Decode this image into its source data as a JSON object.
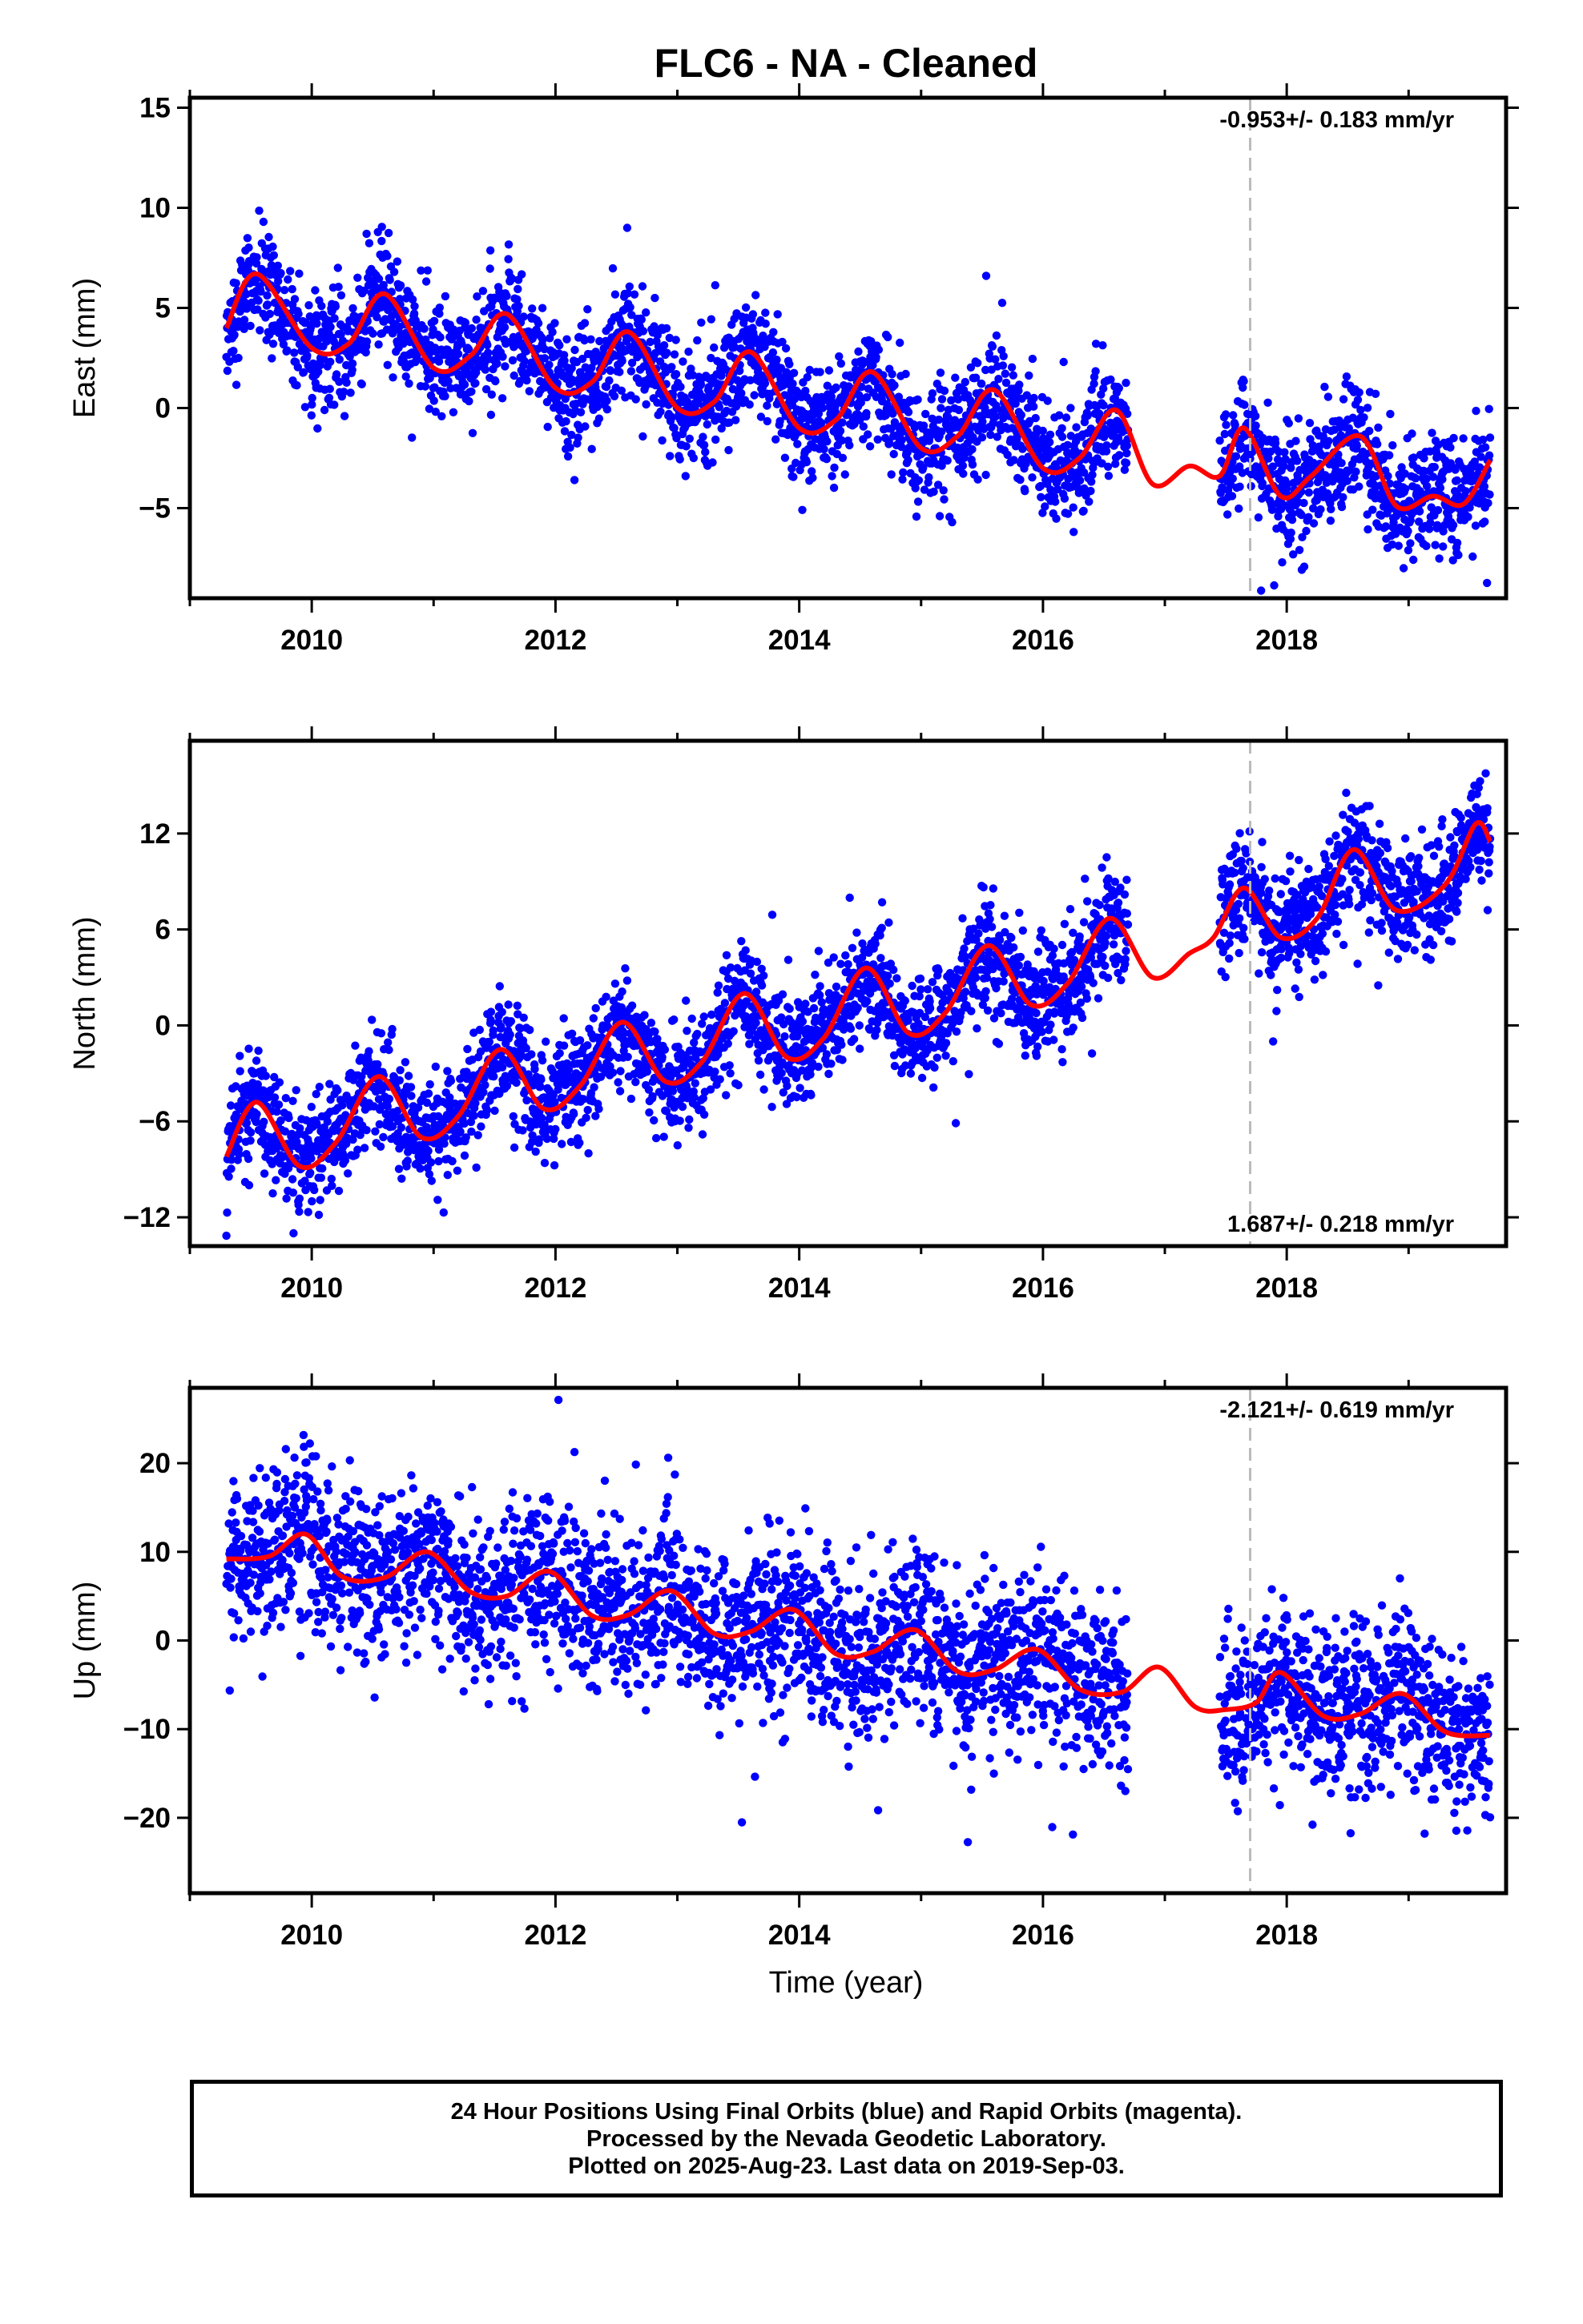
{
  "chart_data": {
    "title": "FLC6  - NA - Cleaned",
    "xlabel": "Time (year)",
    "xlim": [
      2009.0,
      2019.8
    ],
    "x_ticks": [
      2010,
      2012,
      2014,
      2016,
      2018
    ],
    "x_tick_labels": [
      "2010",
      "2012",
      "2014",
      "2016",
      "2018"
    ],
    "vertical_dashed_line_x": 2017.7,
    "colors": {
      "final_orbits": "#0000ff",
      "model": "#ff0000",
      "reference_line": "#bbbbbb"
    },
    "panels": [
      {
        "type": "scatter",
        "ylabel": "East (mm)",
        "ylim": [
          -9.5,
          15.5
        ],
        "y_ticks": [
          -5,
          0,
          5,
          10,
          15
        ],
        "y_tick_labels": [
          "−5",
          "0",
          "5",
          "10",
          "15"
        ],
        "rate_text": "-0.953+/- 0.183 mm/yr",
        "rate_position": "top-right",
        "series": [
          {
            "name": "Final Orbits (blue)",
            "kind": "daily positions",
            "x_range": [
              2009.3,
              2019.67
            ],
            "gap": [
              2016.7,
              2017.45
            ],
            "trend_mm_per_yr": -0.953,
            "value_at_start": 4.5,
            "annual_amplitude": 2.2,
            "scatter_sd": 1.4
          },
          {
            "kind": "model",
            "x": [
              2009.3,
              2009.55,
              2010.0,
              2010.3,
              2010.6,
              2011.0,
              2011.3,
              2011.6,
              2012.0,
              2012.3,
              2012.6,
              2013.0,
              2013.3,
              2013.6,
              2014.0,
              2014.3,
              2014.6,
              2015.0,
              2015.3,
              2015.6,
              2016.0,
              2016.3,
              2016.6,
              2016.9,
              2017.2,
              2017.45,
              2017.65,
              2017.95,
              2018.2,
              2018.6,
              2018.9,
              2019.2,
              2019.45,
              2019.67
            ],
            "y": [
              4.0,
              6.7,
              3.0,
              3.2,
              5.7,
              2.0,
              2.6,
              4.7,
              1.0,
              1.3,
              3.8,
              0.0,
              0.3,
              2.8,
              -1.0,
              -0.6,
              1.8,
              -2.0,
              -1.4,
              0.9,
              -3.0,
              -2.5,
              -0.1,
              -3.8,
              -2.9,
              -3.4,
              -1.0,
              -4.4,
              -3.4,
              -1.4,
              -4.9,
              -4.4,
              -4.8,
              -2.6
            ]
          }
        ]
      },
      {
        "type": "scatter",
        "ylabel": "North (mm)",
        "ylim": [
          -13.8,
          17.8
        ],
        "y_ticks": [
          -12,
          -6,
          0,
          6,
          12
        ],
        "y_tick_labels": [
          "−12",
          "−6",
          "0",
          "6",
          "12"
        ],
        "rate_text": "1.687+/- 0.218 mm/yr",
        "rate_position": "bottom-right",
        "series": [
          {
            "name": "Final Orbits (blue)",
            "kind": "daily positions",
            "x_range": [
              2009.3,
              2019.67
            ],
            "gap": [
              2016.7,
              2017.45
            ],
            "trend_mm_per_yr": 1.687,
            "value_at_start": -8.0,
            "annual_amplitude": 2.3,
            "scatter_sd": 1.7
          },
          {
            "kind": "model",
            "x": [
              2009.3,
              2009.55,
              2009.9,
              2010.2,
              2010.55,
              2010.9,
              2011.2,
              2011.55,
              2011.9,
              2012.2,
              2012.55,
              2012.9,
              2013.2,
              2013.55,
              2013.9,
              2014.2,
              2014.55,
              2014.9,
              2015.2,
              2015.55,
              2015.9,
              2016.2,
              2016.55,
              2016.9,
              2017.2,
              2017.4,
              2017.65,
              2017.95,
              2018.25,
              2018.55,
              2018.9,
              2019.3,
              2019.55,
              2019.67
            ],
            "y": [
              -8.2,
              -4.8,
              -8.8,
              -7.3,
              -3.2,
              -7.0,
              -5.7,
              -1.5,
              -5.2,
              -3.8,
              0.2,
              -3.5,
              -2.3,
              2.0,
              -2.0,
              -0.8,
              3.6,
              -0.5,
              0.8,
              5.0,
              1.3,
              2.6,
              6.7,
              3.0,
              4.5,
              5.5,
              8.6,
              5.5,
              6.7,
              11.0,
              7.2,
              8.8,
              12.6,
              11.5
            ]
          }
        ]
      },
      {
        "type": "scatter",
        "ylabel": "Up (mm)",
        "ylim": [
          -28.5,
          28.5
        ],
        "y_ticks": [
          -20,
          -10,
          0,
          10,
          20
        ],
        "y_tick_labels": [
          "−20",
          "−10",
          "0",
          "10",
          "20"
        ],
        "rate_text": "-2.121+/- 0.619 mm/yr",
        "rate_position": "top-right",
        "series": [
          {
            "name": "Final Orbits (blue)",
            "kind": "daily positions",
            "x_range": [
              2009.3,
              2019.67
            ],
            "gap": [
              2016.7,
              2017.45
            ],
            "trend_mm_per_yr": -2.121,
            "value_at_start": 10.5,
            "annual_amplitude": 1.7,
            "scatter_sd": 4.6
          },
          {
            "kind": "model",
            "x": [
              2009.3,
              2009.65,
              2009.95,
              2010.25,
              2010.6,
              2010.95,
              2011.3,
              2011.6,
              2011.95,
              2012.3,
              2012.6,
              2012.95,
              2013.3,
              2013.6,
              2013.95,
              2014.3,
              2014.6,
              2014.95,
              2015.3,
              2015.6,
              2015.95,
              2016.3,
              2016.65,
              2016.95,
              2017.25,
              2017.5,
              2017.75,
              2017.95,
              2018.3,
              2018.6,
              2018.95,
              2019.3,
              2019.67
            ],
            "y": [
              9.2,
              9.5,
              12.0,
              7.2,
              7.1,
              10.0,
              5.5,
              5.0,
              7.8,
              2.8,
              2.9,
              5.6,
              0.8,
              1.0,
              3.5,
              -1.5,
              -1.3,
              1.2,
              -3.5,
              -3.3,
              -1.0,
              -5.5,
              -5.8,
              -3.0,
              -7.5,
              -7.8,
              -7.0,
              -3.6,
              -8.5,
              -8.3,
              -6.0,
              -10.3,
              -10.7
            ]
          }
        ]
      }
    ]
  },
  "footer": {
    "line1": "24 Hour Positions Using Final Orbits (blue) and Rapid Orbits (magenta).",
    "line2": "Processed by the Nevada Geodetic Laboratory.",
    "line3": "Plotted on 2025-Aug-23. Last data on 2019-Sep-03."
  }
}
